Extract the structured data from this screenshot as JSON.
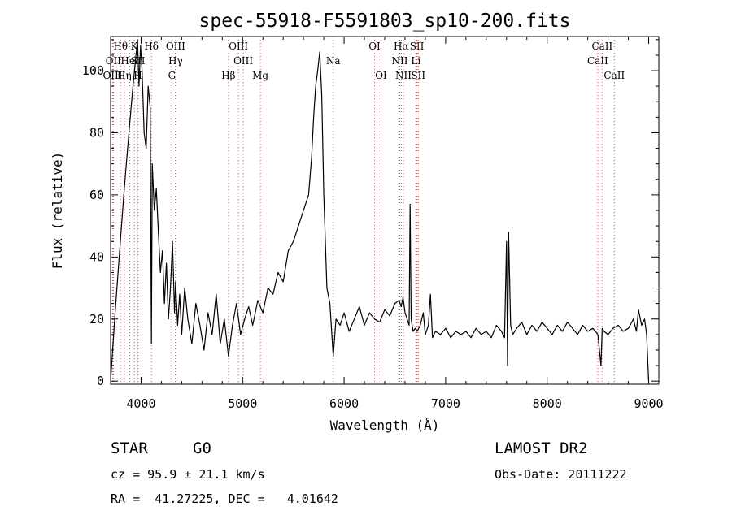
{
  "chart_data": {
    "type": "line",
    "title": "spec-55918-F5591803_sp10-200.fits",
    "xlabel": "Wavelength (Å)",
    "ylabel": "Flux (relative)",
    "xlim": [
      3700,
      9100
    ],
    "ylim": [
      -1,
      111
    ],
    "xticks": [
      4000,
      5000,
      6000,
      7000,
      8000,
      9000
    ],
    "yticks": [
      0,
      20,
      40,
      60,
      80,
      100
    ],
    "grid": false,
    "series": [
      {
        "x": [
          3700,
          3740,
          3780,
          3830,
          3880,
          3920,
          3950,
          3965,
          3980,
          3995,
          4010,
          4030,
          4050,
          4070,
          4090,
          4102,
          4110,
          4130,
          4150,
          4170,
          4190,
          4210,
          4230,
          4250,
          4270,
          4290,
          4310,
          4330,
          4340,
          4360,
          4380,
          4400,
          4430,
          4460,
          4500,
          4540,
          4580,
          4620,
          4660,
          4700,
          4740,
          4780,
          4820,
          4861,
          4900,
          4940,
          4980,
          5020,
          5060,
          5100,
          5150,
          5200,
          5250,
          5300,
          5350,
          5400,
          5450,
          5500,
          5550,
          5600,
          5650,
          5680,
          5700,
          5720,
          5740,
          5760,
          5780,
          5800,
          5830,
          5860,
          5893,
          5920,
          5960,
          6000,
          6050,
          6100,
          6150,
          6200,
          6250,
          6300,
          6350,
          6400,
          6450,
          6500,
          6540,
          6563,
          6580,
          6600,
          6640,
          6650,
          6660,
          6680,
          6700,
          6720,
          6750,
          6780,
          6800,
          6830,
          6850,
          6870,
          6900,
          6950,
          7000,
          7050,
          7100,
          7150,
          7200,
          7250,
          7300,
          7350,
          7400,
          7450,
          7500,
          7550,
          7580,
          7600,
          7610,
          7620,
          7640,
          7660,
          7700,
          7750,
          7800,
          7850,
          7900,
          7950,
          8000,
          8050,
          8100,
          8150,
          8200,
          8250,
          8300,
          8350,
          8400,
          8450,
          8500,
          8530,
          8542,
          8560,
          8600,
          8650,
          8700,
          8750,
          8800,
          8850,
          8880,
          8900,
          8930,
          8960,
          8980,
          9000
        ],
        "y": [
          0,
          20,
          38,
          60,
          80,
          95,
          105,
          110,
          95,
          108,
          100,
          80,
          75,
          95,
          88,
          12,
          70,
          55,
          62,
          48,
          35,
          42,
          25,
          38,
          20,
          30,
          45,
          22,
          32,
          18,
          28,
          15,
          30,
          20,
          12,
          25,
          18,
          10,
          22,
          15,
          28,
          12,
          20,
          8,
          18,
          25,
          15,
          20,
          24,
          18,
          26,
          22,
          30,
          28,
          35,
          32,
          42,
          45,
          50,
          55,
          60,
          72,
          85,
          95,
          100,
          106,
          92,
          60,
          30,
          25,
          8,
          20,
          18,
          22,
          16,
          20,
          24,
          18,
          22,
          20,
          19,
          23,
          21,
          25,
          26,
          24,
          27,
          22,
          18,
          57,
          20,
          16,
          17,
          16,
          18,
          22,
          15,
          18,
          28,
          14,
          16,
          15,
          17,
          14,
          16,
          15,
          16,
          14,
          17,
          15,
          16,
          14,
          18,
          16,
          14,
          45,
          5,
          48,
          18,
          15,
          17,
          19,
          15,
          18,
          16,
          19,
          17,
          15,
          18,
          16,
          19,
          17,
          15,
          18,
          16,
          17,
          15,
          5,
          17,
          16,
          15,
          17,
          18,
          16,
          17,
          20,
          16,
          23,
          18,
          20,
          15,
          0
        ]
      }
    ],
    "line_markers": [
      {
        "x": 3798,
        "label": "Hθ",
        "row": 0
      },
      {
        "x": 3727,
        "label": "OII",
        "row": 1
      },
      {
        "x": 3720,
        "label": "OIII",
        "row": 2
      },
      {
        "x": 3835,
        "label": "Hη",
        "row": 2
      },
      {
        "x": 3889,
        "label": "HeI",
        "row": 1
      },
      {
        "x": 3934,
        "label": "K",
        "row": 0
      },
      {
        "x": 3968,
        "label": "H",
        "row": 2
      },
      {
        "x": 3970,
        "label": "SII",
        "row": 1
      },
      {
        "x": 4102,
        "label": "Hδ",
        "row": 0
      },
      {
        "x": 4340,
        "label": "OIII",
        "row": 0
      },
      {
        "x": 4340,
        "label": "Hγ",
        "row": 1
      },
      {
        "x": 4304,
        "label": "G",
        "row": 2
      },
      {
        "x": 4861,
        "label": "Hβ",
        "row": 2
      },
      {
        "x": 4959,
        "label": "OIII",
        "row": 0
      },
      {
        "x": 5007,
        "label": "OIII",
        "row": 1
      },
      {
        "x": 5175,
        "label": "Mg",
        "row": 2
      },
      {
        "x": 5893,
        "label": "Na",
        "row": 1
      },
      {
        "x": 6300,
        "label": "OI",
        "row": 0
      },
      {
        "x": 6364,
        "label": "OI",
        "row": 2
      },
      {
        "x": 6563,
        "label": "Hα",
        "row": 0
      },
      {
        "x": 6548,
        "label": "NII",
        "row": 1
      },
      {
        "x": 6584,
        "label": "NII",
        "row": 2
      },
      {
        "x": 6717,
        "label": "SII",
        "row": 0
      },
      {
        "x": 6707,
        "label": "Li",
        "row": 1
      },
      {
        "x": 6731,
        "label": "SII",
        "row": 2
      },
      {
        "x": 8498,
        "label": "CaII",
        "row": 1
      },
      {
        "x": 8542,
        "label": "CaII",
        "row": 0
      },
      {
        "x": 8662,
        "label": "CaII",
        "row": 2
      }
    ]
  },
  "footer": {
    "object_class": "STAR",
    "subclass": "G0",
    "survey": "LAMOST DR2",
    "cz_line": "cz = 95.9 ± 21.1 km/s",
    "obs_date_line": "Obs-Date: 20111222",
    "radec_line": "RA =  41.27225, DEC =   4.01642"
  },
  "colors": {
    "marker": "#d04a4a",
    "ink": "#000000",
    "background": "#ffffff"
  }
}
